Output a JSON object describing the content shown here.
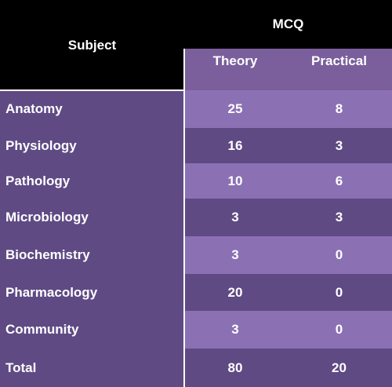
{
  "header": {
    "subject_label": "Subject",
    "group_label": "MCQ",
    "col_theory": "Theory",
    "col_practical": "Practical"
  },
  "rows": [
    {
      "subject": "Anatomy",
      "theory": "25",
      "practical": "8"
    },
    {
      "subject": "Physiology",
      "theory": "16",
      "practical": "3"
    },
    {
      "subject": "Pathology",
      "theory": "10",
      "practical": "6"
    },
    {
      "subject": "Microbiology",
      "theory": "3",
      "practical": "3"
    },
    {
      "subject": "Biochemistry",
      "theory": "3",
      "practical": "0"
    },
    {
      "subject": "Pharmacology",
      "theory": "20",
      "practical": "0"
    },
    {
      "subject": "Community",
      "theory": "3",
      "practical": "0"
    },
    {
      "subject": "Total",
      "theory": "80",
      "practical": "20"
    }
  ],
  "colors": {
    "header_bg": "#000000",
    "subheader_bg": "#7b5f9c",
    "row_dark": "#5f4a84",
    "row_light": "#8c70b4",
    "text": "#ffffff"
  }
}
